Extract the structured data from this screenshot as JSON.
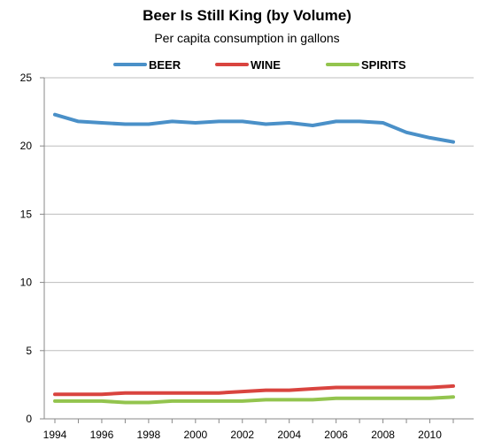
{
  "chart_data": {
    "type": "line",
    "title": "Beer Is Still King (by Volume)",
    "subtitle": "Per capita consumption in gallons",
    "xlabel": "",
    "ylabel": "",
    "x": [
      1994,
      1995,
      1996,
      1997,
      1998,
      1999,
      2000,
      2001,
      2002,
      2003,
      2004,
      2005,
      2006,
      2007,
      2008,
      2009,
      2010,
      2011
    ],
    "x_tick_labels": [
      "1994",
      "1996",
      "1998",
      "2000",
      "2002",
      "2004",
      "2006",
      "2008",
      "2010"
    ],
    "y_tick_labels": [
      "0",
      "5",
      "10",
      "15",
      "20",
      "25"
    ],
    "xlim": [
      1994,
      2011
    ],
    "ylim": [
      0,
      25
    ],
    "grid": "horizontal",
    "legend_position": "top",
    "series": [
      {
        "name": "BEER",
        "color": "#4a90c8",
        "values": [
          22.3,
          21.8,
          21.7,
          21.6,
          21.6,
          21.8,
          21.7,
          21.8,
          21.8,
          21.6,
          21.7,
          21.5,
          21.8,
          21.8,
          21.7,
          21.0,
          20.6,
          20.3
        ]
      },
      {
        "name": "WINE",
        "color": "#d9443f",
        "values": [
          1.8,
          1.8,
          1.8,
          1.9,
          1.9,
          1.9,
          1.9,
          1.9,
          2.0,
          2.1,
          2.1,
          2.2,
          2.3,
          2.3,
          2.3,
          2.3,
          2.3,
          2.4
        ]
      },
      {
        "name": "SPIRITS",
        "color": "#93c44e",
        "values": [
          1.3,
          1.3,
          1.3,
          1.2,
          1.2,
          1.3,
          1.3,
          1.3,
          1.3,
          1.4,
          1.4,
          1.4,
          1.5,
          1.5,
          1.5,
          1.5,
          1.5,
          1.6
        ]
      }
    ]
  }
}
